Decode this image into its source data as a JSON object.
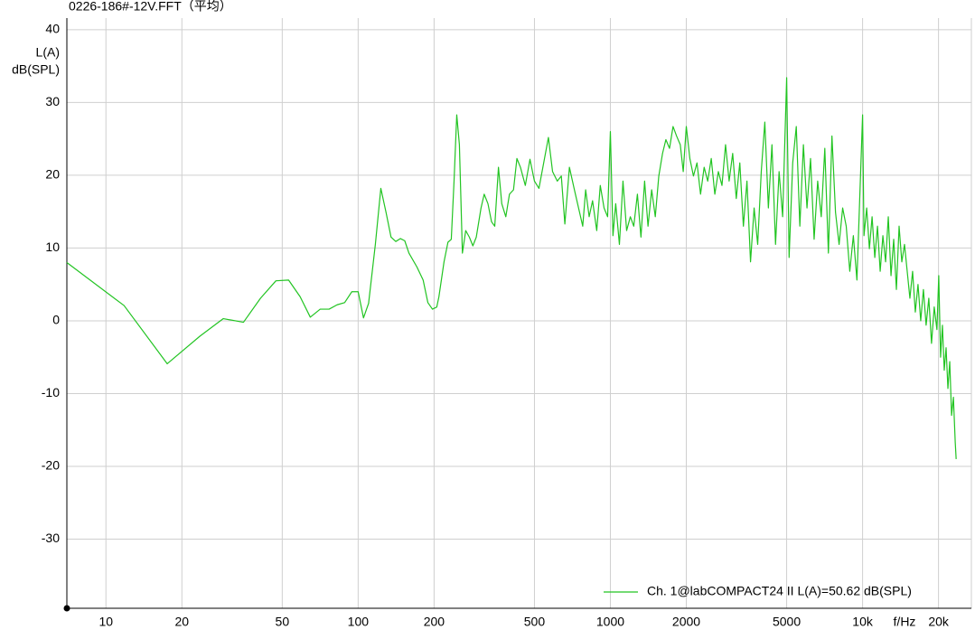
{
  "chart_data": {
    "type": "line",
    "title": "0226-186#-12V.FFT（平均）",
    "x_label": "f/Hz",
    "y_label": [
      "L(A)",
      "dB(SPL)"
    ],
    "xscale": "log",
    "grid": true,
    "legend": "bottom-right",
    "xlim": [
      7,
      27000
    ],
    "ylim": [
      -39.5,
      41.6
    ],
    "xticks": [
      10,
      20,
      50,
      100,
      200,
      500,
      1000,
      2000,
      5000,
      {
        "value": 10000,
        "label": "10k"
      },
      {
        "value": 20000,
        "label": "20k"
      }
    ],
    "yticks": [
      40,
      30,
      20,
      10,
      0,
      -10,
      -20,
      -30
    ],
    "x": [
      7,
      11.8,
      17.5,
      23.6,
      29.2,
      35.1,
      41,
      47.2,
      53,
      58.9,
      64.6,
      70.7,
      76.7,
      82.5,
      88.4,
      94.4,
      100,
      105,
      110,
      117,
      123,
      129,
      135,
      141,
      147,
      153,
      159,
      171,
      181,
      189,
      197,
      205,
      209,
      219,
      227,
      234,
      240,
      246,
      252,
      259,
      267,
      276,
      285,
      294,
      307,
      316,
      327,
      338,
      348,
      360,
      371,
      385,
      398,
      413,
      426,
      440,
      460,
      480,
      500,
      521,
      544,
      568,
      590,
      616,
      639,
      660,
      688,
      718,
      748,
      777,
      798,
      824,
      850,
      883,
      912,
      944,
      975,
      1000,
      1024,
      1050,
      1086,
      1122,
      1160,
      1200,
      1238,
      1280,
      1322,
      1367,
      1410,
      1458,
      1507,
      1556,
      1610,
      1660,
      1716,
      1772,
      1830,
      1893,
      1945,
      2000,
      2066,
      2135,
      2205,
      2278,
      2354,
      2432,
      2512,
      2595,
      2680,
      2770,
      2862,
      2957,
      3055,
      3156,
      3260,
      3368,
      3480,
      3595,
      3715,
      3838,
      3965,
      4096,
      4231,
      4372,
      4517,
      4666,
      4820,
      5000,
      5113,
      5284,
      5459,
      5640,
      5826,
      6019,
      6218,
      6424,
      6636,
      6856,
      7083,
      7318,
      7560,
      7810,
      8069,
      8336,
      8612,
      8897,
      9191,
      9496,
      10000,
      10128,
      10381,
      10640,
      10906,
      11178,
      11457,
      11743,
      12036,
      12337,
      12645,
      12961,
      13285,
      13616,
      13956,
      14305,
      14662,
      15028,
      15403,
      15788,
      16182,
      16586,
      17000,
      17425,
      17860,
      18306,
      18763,
      19232,
      19712,
      20044,
      20382,
      20726,
      21075,
      21431,
      21793,
      22160,
      22534,
      22914,
      23300,
      23496
    ],
    "series": [
      {
        "name": "Ch. 1@labCOMPACT24 II L(A)=50.62 dB(SPL)",
        "color": "#22c422",
        "values": [
          8.0,
          2.1,
          -5.9,
          -2.1,
          0.3,
          -0.2,
          3.1,
          5.5,
          5.6,
          3.3,
          0.5,
          1.6,
          1.6,
          2.2,
          2.5,
          4.0,
          4.0,
          0.4,
          2.4,
          10.5,
          18.2,
          14.9,
          11.5,
          10.9,
          11.3,
          11.0,
          9.3,
          7.4,
          5.6,
          2.5,
          1.6,
          1.9,
          3.3,
          8.1,
          10.8,
          11.2,
          19.2,
          28.3,
          24.2,
          9.3,
          12.4,
          11.5,
          10.3,
          11.5,
          15.5,
          17.4,
          16.1,
          13.6,
          13.0,
          21.1,
          16.1,
          14.3,
          17.4,
          18.0,
          22.3,
          21.1,
          18.6,
          22.2,
          19.2,
          18.2,
          21.7,
          25.2,
          20.5,
          19.2,
          19.9,
          13.3,
          21.1,
          18.2,
          15.5,
          13.0,
          18.0,
          14.3,
          16.5,
          12.4,
          18.6,
          15.5,
          14.3,
          26.0,
          11.7,
          16.1,
          10.5,
          19.2,
          12.4,
          14.3,
          13.0,
          17.4,
          11.5,
          19.2,
          13.0,
          18.0,
          14.3,
          19.9,
          23.0,
          24.9,
          23.7,
          26.7,
          25.4,
          24.2,
          20.5,
          26.7,
          22.3,
          19.9,
          21.7,
          17.4,
          21.1,
          19.2,
          22.3,
          17.4,
          20.5,
          18.6,
          24.2,
          19.2,
          23.0,
          16.8,
          21.7,
          13.0,
          19.2,
          8.1,
          15.5,
          10.5,
          20.5,
          27.3,
          15.5,
          24.2,
          10.5,
          20.5,
          14.3,
          33.4,
          8.7,
          21.7,
          26.7,
          13.0,
          24.2,
          15.5,
          22.3,
          11.2,
          19.2,
          14.3,
          23.7,
          9.3,
          25.4,
          14.9,
          10.5,
          15.5,
          13.0,
          6.8,
          11.7,
          5.6,
          28.3,
          11.7,
          15.5,
          9.9,
          14.3,
          8.7,
          13.0,
          6.8,
          11.7,
          8.1,
          14.3,
          6.2,
          11.2,
          4.3,
          13.0,
          8.1,
          10.5,
          6.8,
          3.1,
          6.8,
          1.2,
          5.0,
          0.0,
          4.3,
          -0.6,
          3.1,
          -3.1,
          1.9,
          -1.2,
          6.2,
          -5.0,
          -0.6,
          -6.8,
          -3.7,
          -9.3,
          -5.6,
          -13.0,
          -10.5,
          -16.7,
          -19.0
        ]
      }
    ]
  }
}
